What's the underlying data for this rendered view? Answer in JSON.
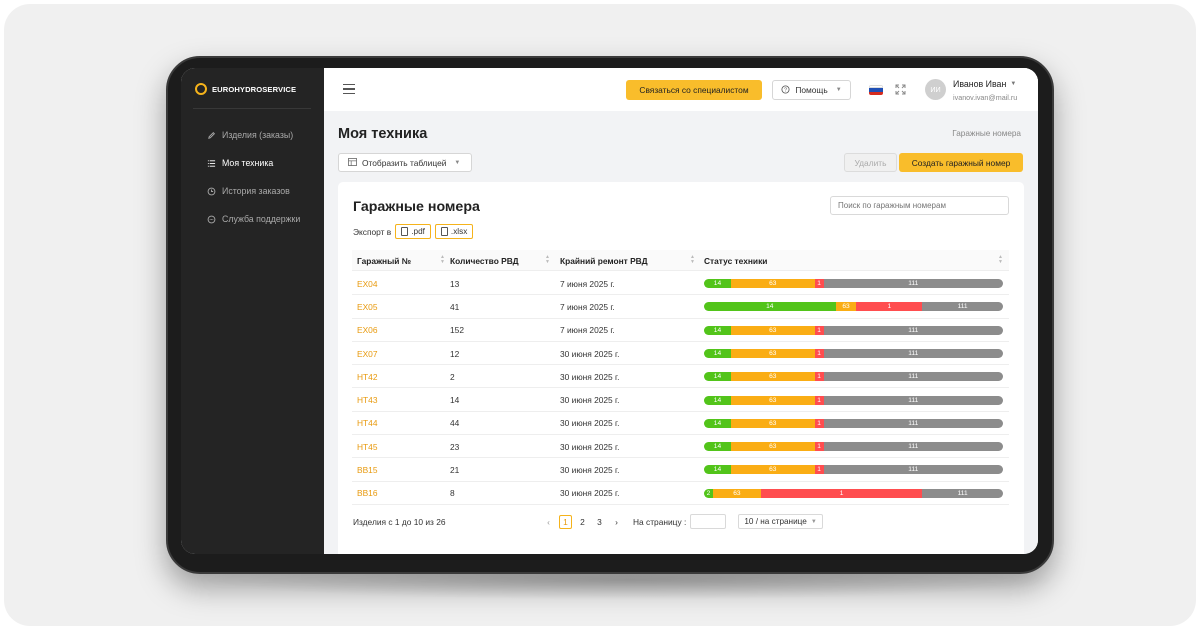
{
  "brand": {
    "name": "EUROHYDROSERVICE"
  },
  "sidebar": {
    "items": [
      {
        "label": "Изделия (заказы)",
        "icon": "pencil-icon",
        "active": false
      },
      {
        "label": "Моя техника",
        "icon": "list-icon",
        "active": true
      },
      {
        "label": "История заказов",
        "icon": "history-icon",
        "active": false
      },
      {
        "label": "Служба поддержки",
        "icon": "chat-icon",
        "active": false
      }
    ]
  },
  "header": {
    "contact_label": "Связаться со специалистом",
    "help_label": "Помощь",
    "user_initials": "ИИ",
    "user_name": "Иванов Иван",
    "user_email": "ivanov.ivan@mail.ru"
  },
  "page": {
    "title": "Моя техника",
    "breadcrumb": "Гаражные номера",
    "view_label": "Отобразить таблицей",
    "delete_label": "Удалить",
    "create_label": "Создать гаражный номер"
  },
  "panel": {
    "title": "Гаражные номера",
    "search_placeholder": "Поиск по гаражным номерам",
    "export_label": "Экспорт в",
    "export_pdf": ".pdf",
    "export_xlsx": ".xlsx"
  },
  "table": {
    "columns": [
      "Гаражный №",
      "Количество РВД",
      "Крайний ремонт РВД",
      "Статус техники"
    ],
    "rows": [
      {
        "id": "EX04",
        "count": "13",
        "repair": "7 июня 2025 г.",
        "status": [
          14,
          63,
          1,
          111
        ]
      },
      {
        "id": "EX05",
        "count": "41",
        "repair": "7 июня 2025  г.",
        "status": [
          14,
          63,
          1,
          111
        ]
      },
      {
        "id": "EX06",
        "count": "152",
        "repair": "7 июня 2025 г.",
        "status": [
          14,
          63,
          1,
          111
        ]
      },
      {
        "id": "EX07",
        "count": "12",
        "repair": "30 июня 2025 г.",
        "status": [
          14,
          63,
          1,
          111
        ]
      },
      {
        "id": "HT42",
        "count": "2",
        "repair": "30 июня 2025 г.",
        "status": [
          14,
          63,
          1,
          111
        ]
      },
      {
        "id": "HT43",
        "count": "14",
        "repair": "30 июня 2025 г.",
        "status": [
          14,
          63,
          1,
          111
        ]
      },
      {
        "id": "HT44",
        "count": "44",
        "repair": "30 июня 2025 г.",
        "status": [
          14,
          63,
          1,
          111
        ]
      },
      {
        "id": "HT45",
        "count": "23",
        "repair": "30 июня 2025 г.",
        "status": [
          14,
          63,
          1,
          111
        ]
      },
      {
        "id": "BB15",
        "count": "21",
        "repair": "30 июня 2025 г.",
        "status": [
          14,
          63,
          1,
          111
        ]
      },
      {
        "id": "BB16",
        "count": "8",
        "repair": "30 июня 2025 г.",
        "status": [
          2,
          63,
          1,
          111
        ]
      }
    ],
    "status_shares": [
      [
        0.09,
        0.28,
        0.03,
        0.6
      ],
      [
        0.44,
        0.07,
        0.22,
        0.27
      ],
      [
        0.09,
        0.28,
        0.03,
        0.6
      ],
      [
        0.09,
        0.28,
        0.03,
        0.6
      ],
      [
        0.09,
        0.28,
        0.03,
        0.6
      ],
      [
        0.09,
        0.28,
        0.03,
        0.6
      ],
      [
        0.09,
        0.28,
        0.03,
        0.6
      ],
      [
        0.09,
        0.28,
        0.03,
        0.6
      ],
      [
        0.09,
        0.28,
        0.03,
        0.6
      ],
      [
        0.03,
        0.16,
        0.54,
        0.27
      ]
    ],
    "status_colors": [
      "#52c41a",
      "#faad14",
      "#ff4d4f",
      "#8c8c8c"
    ]
  },
  "pagination": {
    "info": "Изделия с 1 до 10 из 26",
    "pages": [
      "1",
      "2",
      "3"
    ],
    "current": "1",
    "goto_label": "На страницу :",
    "per_page": "10 / на странице"
  }
}
